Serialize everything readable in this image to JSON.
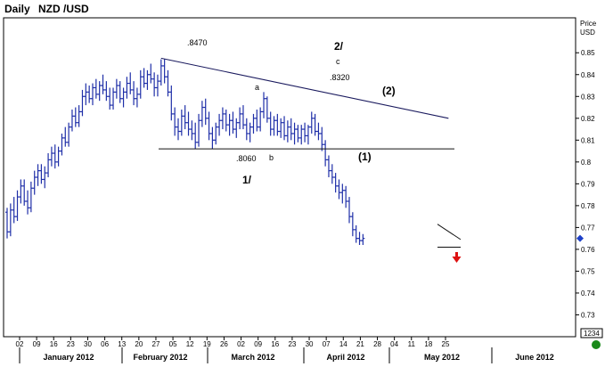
{
  "header": {
    "timeframe": "Daily",
    "symbol": "NZD /USD",
    "price_label_1": "Price",
    "price_label_2": "USD",
    "readout": "1234"
  },
  "colors": {
    "bar": "#1f2fa8",
    "line_dark": "#1a1a5e",
    "marker": "#1e40c8",
    "arrow": "#dd1111",
    "status": "#1a8a1a"
  },
  "chart_data": {
    "type": "ohlc",
    "interval": "daily",
    "ylim": [
      0.72,
      0.866
    ],
    "y_ticks": [
      0.73,
      0.74,
      0.75,
      0.76,
      0.77,
      0.78,
      0.79,
      0.8,
      0.81,
      0.82,
      0.83,
      0.84,
      0.85
    ],
    "y_tick_labels": [
      "0.73",
      "0.74",
      "0.75",
      "0.76",
      "0.77",
      "0.78",
      "0.79",
      "0.8",
      "0.81",
      "0.82",
      "0.83",
      "0.84",
      "0.85"
    ],
    "x_ticks": [
      "02",
      "09",
      "16",
      "23",
      "30",
      "06",
      "13",
      "20",
      "27",
      "05",
      "12",
      "19",
      "26",
      "02",
      "09",
      "16",
      "23",
      "30",
      "07",
      "14",
      "21",
      "28",
      "04",
      "11",
      "18",
      "25"
    ],
    "months": [
      "January 2012",
      "February 2012",
      "March 2012",
      "April 2012",
      "May 2012",
      "June 2012"
    ],
    "last_price": 0.765,
    "bars": [
      [
        0.777,
        0.779,
        0.765,
        0.768
      ],
      [
        0.768,
        0.781,
        0.766,
        0.778
      ],
      [
        0.778,
        0.784,
        0.772,
        0.775
      ],
      [
        0.775,
        0.787,
        0.773,
        0.784
      ],
      [
        0.784,
        0.792,
        0.781,
        0.789
      ],
      [
        0.789,
        0.792,
        0.78,
        0.782
      ],
      [
        0.782,
        0.787,
        0.776,
        0.779
      ],
      [
        0.779,
        0.791,
        0.777,
        0.788
      ],
      [
        0.788,
        0.796,
        0.785,
        0.793
      ],
      [
        0.793,
        0.799,
        0.789,
        0.796
      ],
      [
        0.796,
        0.799,
        0.79,
        0.792
      ],
      [
        0.792,
        0.798,
        0.788,
        0.795
      ],
      [
        0.795,
        0.804,
        0.793,
        0.801
      ],
      [
        0.801,
        0.807,
        0.798,
        0.804
      ],
      [
        0.804,
        0.808,
        0.797,
        0.8
      ],
      [
        0.8,
        0.807,
        0.798,
        0.805
      ],
      [
        0.805,
        0.813,
        0.803,
        0.811
      ],
      [
        0.811,
        0.816,
        0.807,
        0.809
      ],
      [
        0.809,
        0.818,
        0.807,
        0.816
      ],
      [
        0.816,
        0.824,
        0.814,
        0.821
      ],
      [
        0.821,
        0.825,
        0.816,
        0.818
      ],
      [
        0.818,
        0.826,
        0.816,
        0.823
      ],
      [
        0.823,
        0.833,
        0.821,
        0.83
      ],
      [
        0.83,
        0.836,
        0.826,
        0.832
      ],
      [
        0.832,
        0.835,
        0.827,
        0.829
      ],
      [
        0.829,
        0.836,
        0.826,
        0.834
      ],
      [
        0.834,
        0.838,
        0.829,
        0.831
      ],
      [
        0.831,
        0.837,
        0.828,
        0.835
      ],
      [
        0.835,
        0.84,
        0.831,
        0.833
      ],
      [
        0.833,
        0.837,
        0.828,
        0.83
      ],
      [
        0.83,
        0.834,
        0.824,
        0.826
      ],
      [
        0.826,
        0.834,
        0.824,
        0.832
      ],
      [
        0.832,
        0.838,
        0.829,
        0.835
      ],
      [
        0.835,
        0.837,
        0.827,
        0.829
      ],
      [
        0.829,
        0.834,
        0.825,
        0.832
      ],
      [
        0.832,
        0.839,
        0.829,
        0.836
      ],
      [
        0.836,
        0.841,
        0.831,
        0.833
      ],
      [
        0.833,
        0.837,
        0.826,
        0.829
      ],
      [
        0.829,
        0.834,
        0.825,
        0.831
      ],
      [
        0.831,
        0.842,
        0.829,
        0.839
      ],
      [
        0.839,
        0.843,
        0.834,
        0.836
      ],
      [
        0.836,
        0.842,
        0.833,
        0.84
      ],
      [
        0.84,
        0.845,
        0.836,
        0.838
      ],
      [
        0.838,
        0.841,
        0.83,
        0.834
      ],
      [
        0.834,
        0.84,
        0.83,
        0.837
      ],
      [
        0.837,
        0.847,
        0.835,
        0.844
      ],
      [
        0.844,
        0.847,
        0.836,
        0.839
      ],
      [
        0.839,
        0.842,
        0.83,
        0.832
      ],
      [
        0.832,
        0.835,
        0.819,
        0.822
      ],
      [
        0.822,
        0.825,
        0.812,
        0.816
      ],
      [
        0.816,
        0.82,
        0.81,
        0.814
      ],
      [
        0.814,
        0.824,
        0.812,
        0.821
      ],
      [
        0.821,
        0.826,
        0.815,
        0.818
      ],
      [
        0.818,
        0.823,
        0.812,
        0.815
      ],
      [
        0.815,
        0.819,
        0.81,
        0.813
      ],
      [
        0.813,
        0.818,
        0.806,
        0.809
      ],
      [
        0.809,
        0.822,
        0.807,
        0.819
      ],
      [
        0.819,
        0.828,
        0.816,
        0.825
      ],
      [
        0.825,
        0.829,
        0.817,
        0.82
      ],
      [
        0.82,
        0.823,
        0.81,
        0.813
      ],
      [
        0.813,
        0.816,
        0.806,
        0.81
      ],
      [
        0.81,
        0.818,
        0.808,
        0.816
      ],
      [
        0.816,
        0.822,
        0.812,
        0.819
      ],
      [
        0.819,
        0.825,
        0.815,
        0.822
      ],
      [
        0.822,
        0.824,
        0.814,
        0.817
      ],
      [
        0.817,
        0.822,
        0.812,
        0.819
      ],
      [
        0.819,
        0.823,
        0.813,
        0.815
      ],
      [
        0.815,
        0.82,
        0.811,
        0.818
      ],
      [
        0.818,
        0.825,
        0.815,
        0.822
      ],
      [
        0.822,
        0.826,
        0.815,
        0.817
      ],
      [
        0.817,
        0.82,
        0.81,
        0.813
      ],
      [
        0.813,
        0.818,
        0.809,
        0.816
      ],
      [
        0.816,
        0.822,
        0.813,
        0.82
      ],
      [
        0.82,
        0.824,
        0.814,
        0.816
      ],
      [
        0.816,
        0.825,
        0.814,
        0.823
      ],
      [
        0.823,
        0.832,
        0.82,
        0.829
      ],
      [
        0.829,
        0.83,
        0.818,
        0.82
      ],
      [
        0.82,
        0.823,
        0.812,
        0.815
      ],
      [
        0.815,
        0.821,
        0.812,
        0.819
      ],
      [
        0.819,
        0.822,
        0.812,
        0.814
      ],
      [
        0.814,
        0.82,
        0.811,
        0.818
      ],
      [
        0.818,
        0.821,
        0.81,
        0.812
      ],
      [
        0.812,
        0.819,
        0.809,
        0.816
      ],
      [
        0.816,
        0.82,
        0.81,
        0.813
      ],
      [
        0.813,
        0.818,
        0.808,
        0.815
      ],
      [
        0.815,
        0.817,
        0.809,
        0.811
      ],
      [
        0.811,
        0.817,
        0.808,
        0.815
      ],
      [
        0.815,
        0.818,
        0.809,
        0.812
      ],
      [
        0.812,
        0.817,
        0.808,
        0.816
      ],
      [
        0.816,
        0.823,
        0.813,
        0.82
      ],
      [
        0.82,
        0.822,
        0.812,
        0.814
      ],
      [
        0.814,
        0.818,
        0.81,
        0.813
      ],
      [
        0.813,
        0.816,
        0.805,
        0.808
      ],
      [
        0.808,
        0.81,
        0.798,
        0.801
      ],
      [
        0.801,
        0.803,
        0.793,
        0.796
      ],
      [
        0.796,
        0.799,
        0.79,
        0.793
      ],
      [
        0.793,
        0.795,
        0.786,
        0.789
      ],
      [
        0.789,
        0.792,
        0.783,
        0.786
      ],
      [
        0.786,
        0.79,
        0.781,
        0.787
      ],
      [
        0.787,
        0.789,
        0.779,
        0.782
      ],
      [
        0.782,
        0.784,
        0.772,
        0.775
      ],
      [
        0.775,
        0.777,
        0.766,
        0.769
      ],
      [
        0.769,
        0.771,
        0.763,
        0.765
      ],
      [
        0.765,
        0.768,
        0.762,
        0.764
      ],
      [
        0.764,
        0.767,
        0.762,
        0.765
      ]
    ],
    "trendlines": [
      {
        "from": [
          0.8475,
          0
        ],
        "to": [
          0.82,
          1
        ],
        "span_bars": [
          45,
          129
        ]
      },
      {
        "level": 0.806,
        "span_bars": [
          44,
          135
        ]
      },
      {
        "from": [
          0.77,
          0
        ],
        "to": [
          0.764,
          1
        ],
        "span_bars": [
          128,
          134
        ]
      },
      {
        "level": 0.761,
        "span_bars": [
          128,
          134
        ]
      }
    ],
    "annotations": [
      {
        "text": ".8470"
      },
      {
        "text": "2/"
      },
      {
        "text": "c"
      },
      {
        "text": ".8320"
      },
      {
        "text": "(2)"
      },
      {
        "text": "a"
      },
      {
        "text": ".8060"
      },
      {
        "text": "b"
      },
      {
        "text": "(1)"
      },
      {
        "text": "1/"
      }
    ]
  }
}
